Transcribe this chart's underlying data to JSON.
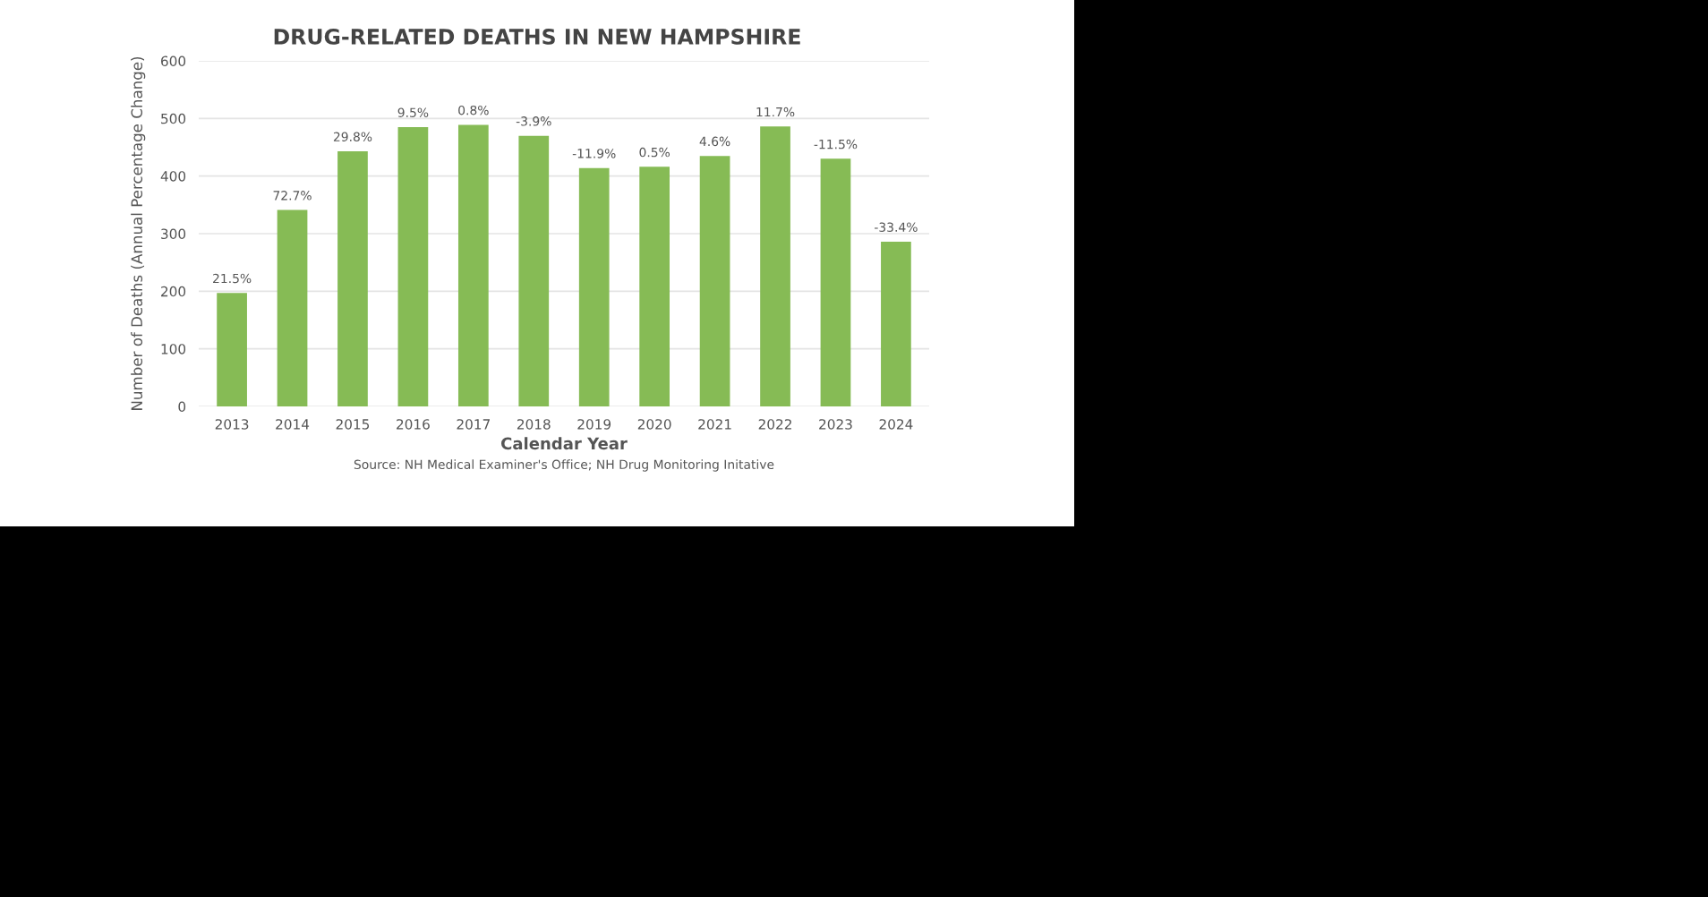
{
  "chart_data": {
    "type": "bar",
    "title": "DRUG-RELATED DEATHS IN NEW HAMPSHIRE",
    "xlabel": "Calendar Year",
    "ylabel": "Number of Deaths (Annual Percentage Change)",
    "categories": [
      "2013",
      "2014",
      "2015",
      "2016",
      "2017",
      "2018",
      "2019",
      "2020",
      "2021",
      "2022",
      "2023",
      "2024"
    ],
    "values": [
      197,
      341,
      443,
      485,
      489,
      470,
      414,
      416,
      435,
      486,
      430,
      286
    ],
    "color": "#86bb55",
    "ylim": [
      0,
      600
    ],
    "yticks": [
      0,
      100,
      200,
      300,
      400,
      500,
      600
    ],
    "grid": "y",
    "annotations": [
      {
        "text": "21.5%",
        "x": "2013",
        "y": 197
      },
      {
        "text": "72.7%",
        "x": "2014",
        "y": 341
      },
      {
        "text": "29.8%",
        "x": "2015",
        "y": 443
      },
      {
        "text": "9.5%",
        "x": "2016",
        "y": 485
      },
      {
        "text": "0.8%",
        "x": "2017",
        "y": 489
      },
      {
        "text": "-3.9%",
        "x": "2018",
        "y": 470
      },
      {
        "text": "-11.9%",
        "x": "2019",
        "y": 414
      },
      {
        "text": "0.5%",
        "x": "2020",
        "y": 416
      },
      {
        "text": "4.6%",
        "x": "2021",
        "y": 435
      },
      {
        "text": "11.7%",
        "x": "2022",
        "y": 486
      },
      {
        "text": "-11.5%",
        "x": "2023",
        "y": 430
      },
      {
        "text": "-33.4%",
        "x": "2024",
        "y": 286
      },
      "Source: NH Medical Examiner's Office; NH Drug Monitoring Initative"
    ]
  }
}
